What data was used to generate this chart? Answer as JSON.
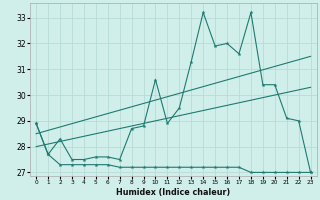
{
  "xlabel": "Humidex (Indice chaleur)",
  "bg_color": "#d0efeb",
  "grid_color": "#b8dbd6",
  "line_color": "#1e7a70",
  "x_values": [
    0,
    1,
    2,
    3,
    4,
    5,
    6,
    7,
    8,
    9,
    10,
    11,
    12,
    13,
    14,
    15,
    16,
    17,
    18,
    19,
    20,
    21,
    22,
    23
  ],
  "series1": [
    28.9,
    27.7,
    28.3,
    27.5,
    27.5,
    27.6,
    27.6,
    27.5,
    28.7,
    28.8,
    30.6,
    28.9,
    29.5,
    31.3,
    33.2,
    31.9,
    32.0,
    31.6,
    33.2,
    30.4,
    30.4,
    29.1,
    29.0,
    27.0
  ],
  "series2": [
    28.9,
    27.7,
    27.3,
    27.3,
    27.3,
    27.3,
    27.3,
    27.2,
    27.2,
    27.2,
    27.2,
    27.2,
    27.2,
    27.2,
    27.2,
    27.2,
    27.2,
    27.2,
    27.0,
    27.0,
    27.0,
    27.0,
    27.0,
    27.0
  ],
  "trend1_x": [
    0,
    23
  ],
  "trend1_y": [
    28.5,
    31.5
  ],
  "trend2_x": [
    0,
    23
  ],
  "trend2_y": [
    28.0,
    30.3
  ],
  "xlim": [
    -0.5,
    23.5
  ],
  "ylim": [
    26.85,
    33.55
  ],
  "yticks": [
    27,
    28,
    29,
    30,
    31,
    32,
    33
  ]
}
